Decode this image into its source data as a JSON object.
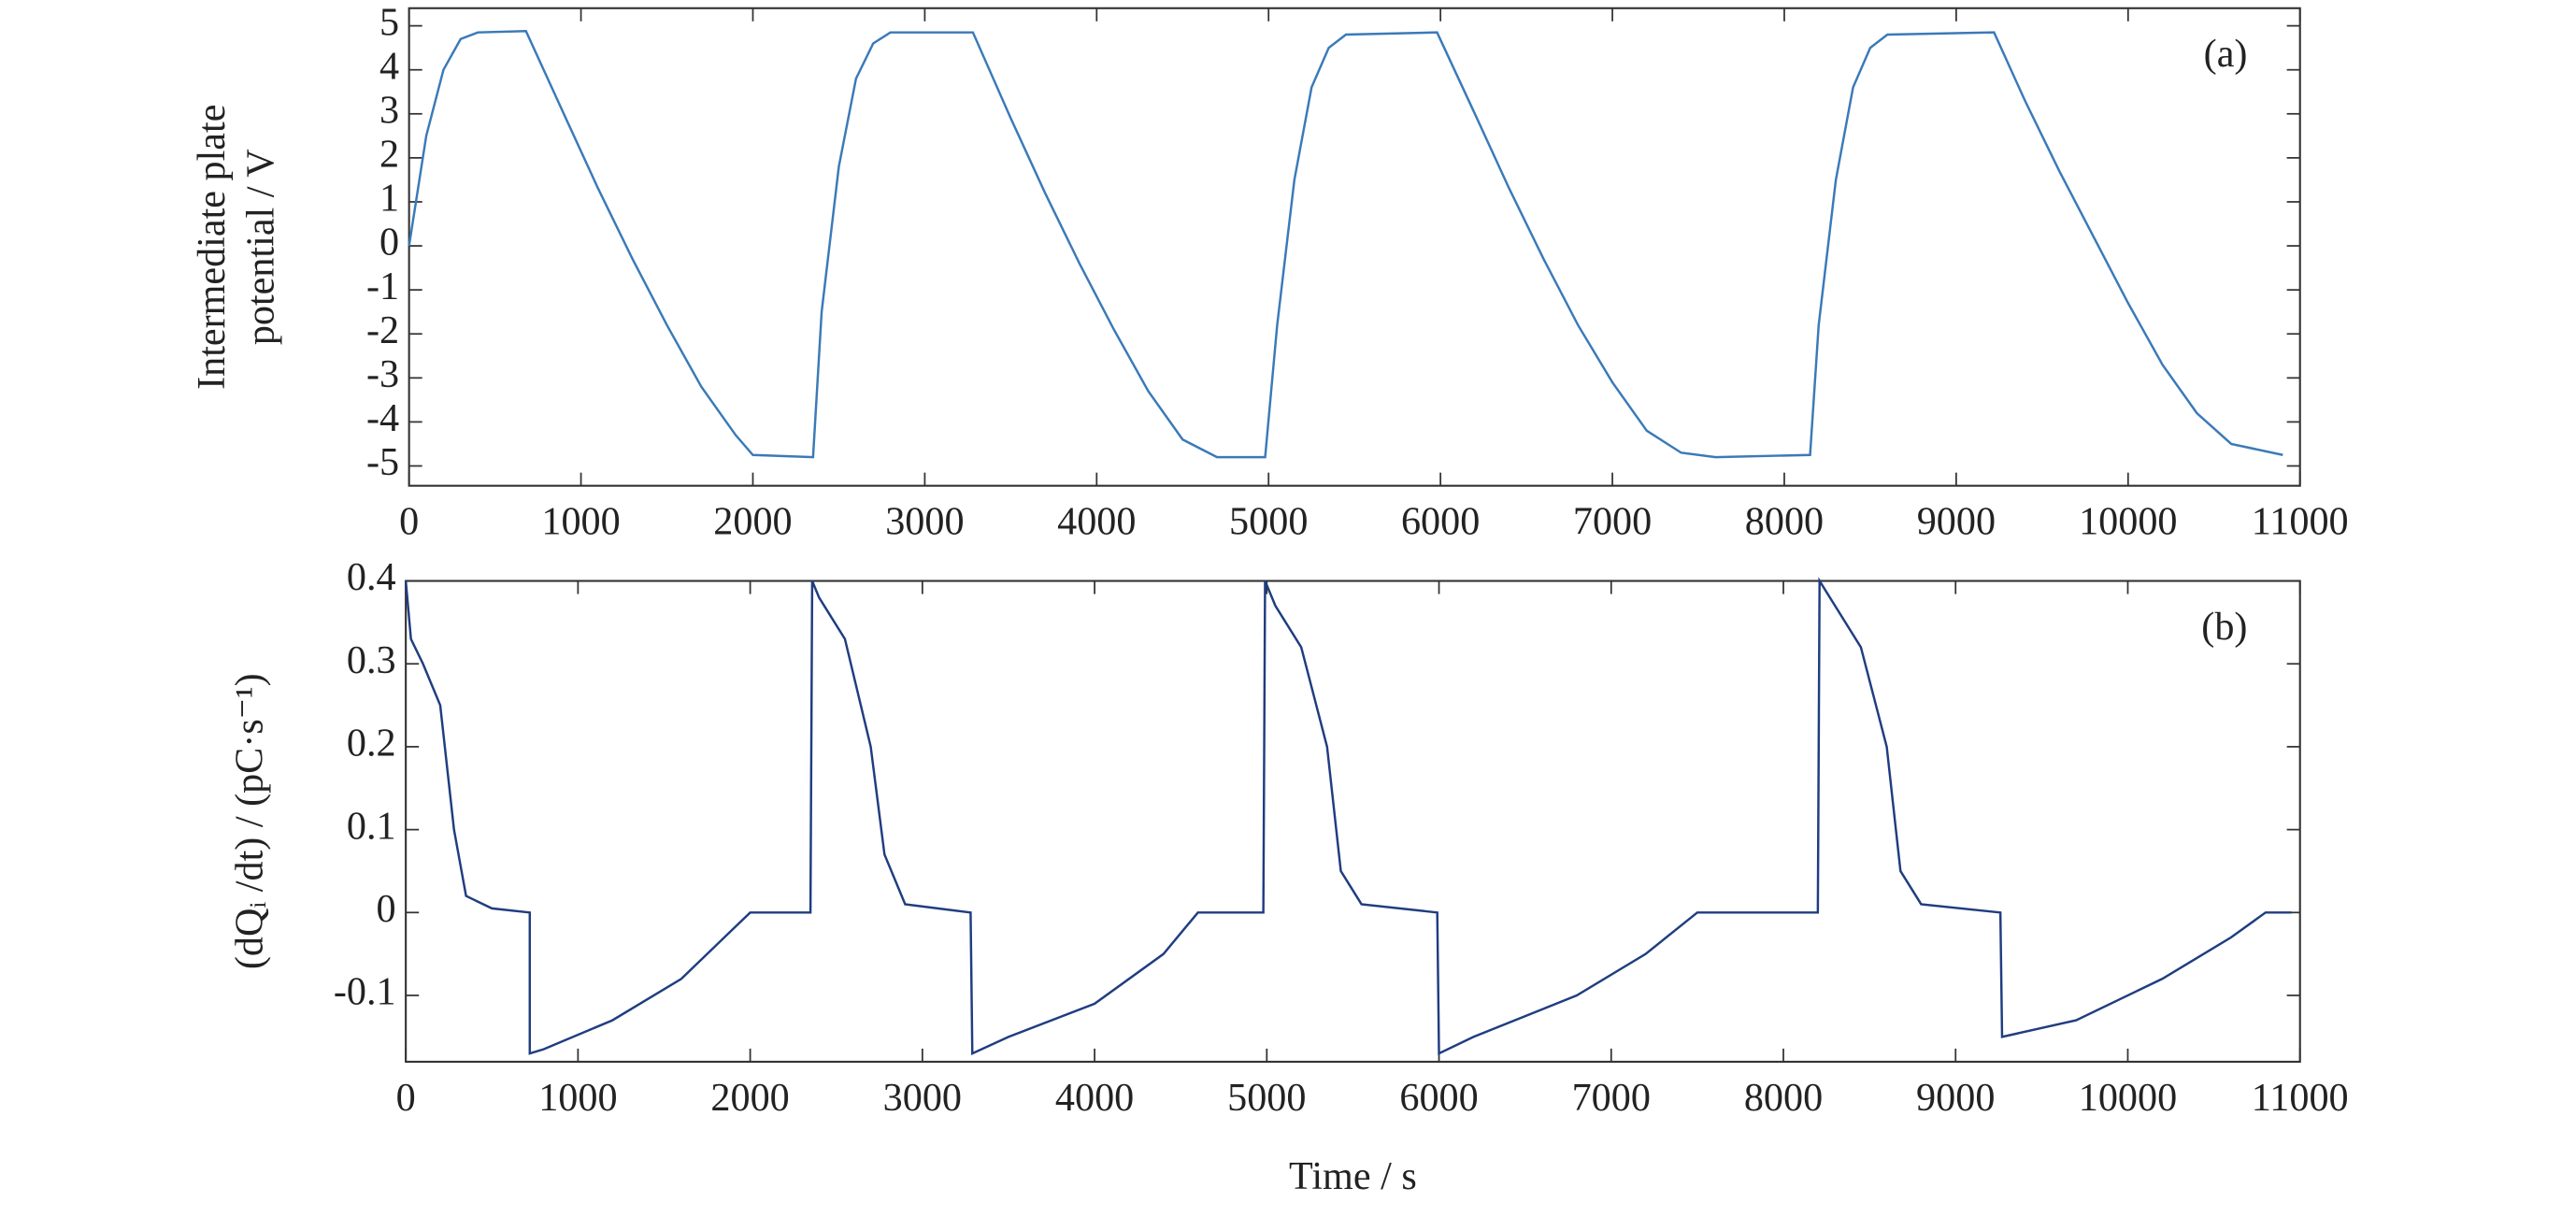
{
  "chart_data": [
    {
      "type": "line",
      "annotation": "(a)",
      "ylabel": [
        "Intermediate plate",
        "potential / V"
      ],
      "xlim": [
        0,
        11000
      ],
      "xticks": [
        0,
        1000,
        2000,
        3000,
        4000,
        5000,
        6000,
        7000,
        8000,
        9000,
        10000,
        11000
      ],
      "ylim": [
        -5.45,
        5.4
      ],
      "yticks": [
        -5,
        -4,
        -3,
        -2,
        -1,
        0,
        1,
        2,
        3,
        4,
        5
      ],
      "series": [
        {
          "color": "#3a7ab8",
          "x": [
            0,
            100,
            200,
            300,
            400,
            680,
            900,
            1100,
            1300,
            1500,
            1700,
            1900,
            2000,
            2350,
            2400,
            2500,
            2600,
            2700,
            2800,
            3280,
            3500,
            3700,
            3900,
            4100,
            4300,
            4500,
            4700,
            4980,
            5050,
            5150,
            5250,
            5350,
            5450,
            5980,
            6200,
            6400,
            6600,
            6800,
            7000,
            7200,
            7400,
            7600,
            8150,
            8200,
            8300,
            8400,
            8500,
            8600,
            9220,
            9400,
            9600,
            9800,
            10000,
            10200,
            10400,
            10600,
            10900
          ],
          "values": [
            0,
            2.5,
            4.0,
            4.7,
            4.85,
            4.88,
            3.0,
            1.3,
            -0.3,
            -1.8,
            -3.2,
            -4.3,
            -4.75,
            -4.8,
            -1.5,
            1.8,
            3.8,
            4.6,
            4.85,
            4.85,
            2.9,
            1.2,
            -0.4,
            -1.9,
            -3.3,
            -4.4,
            -4.8,
            -4.8,
            -1.8,
            1.5,
            3.6,
            4.5,
            4.8,
            4.85,
            3.0,
            1.3,
            -0.3,
            -1.8,
            -3.1,
            -4.2,
            -4.7,
            -4.8,
            -4.75,
            -1.8,
            1.5,
            3.6,
            4.5,
            4.8,
            4.85,
            3.3,
            1.7,
            0.2,
            -1.3,
            -2.7,
            -3.8,
            -4.5,
            -4.75
          ]
        }
      ]
    },
    {
      "type": "line",
      "annotation": "(b)",
      "ylabel": [
        "(dQᵢ /dt) / (pC·s⁻¹)"
      ],
      "xlabel": "Time / s",
      "xlim": [
        0,
        11000
      ],
      "xticks": [
        0,
        1000,
        2000,
        3000,
        4000,
        5000,
        6000,
        7000,
        8000,
        9000,
        10000,
        11000
      ],
      "ylim": [
        -0.18,
        0.4
      ],
      "yticks": [
        -0.1,
        0,
        0.1,
        0.2,
        0.3,
        0.4
      ],
      "series": [
        {
          "color": "#1f3d80",
          "x": [
            0,
            30,
            100,
            200,
            280,
            350,
            500,
            720,
            720,
            800,
            1200,
            1600,
            1900,
            2000,
            2350,
            2360,
            2400,
            2550,
            2700,
            2780,
            2900,
            3280,
            3290,
            3500,
            4000,
            4400,
            4600,
            4980,
            4990,
            5050,
            5200,
            5350,
            5430,
            5550,
            5990,
            6000,
            6200,
            6800,
            7200,
            7500,
            8200,
            8210,
            8300,
            8450,
            8600,
            8680,
            8800,
            9260,
            9270,
            9700,
            10200,
            10600,
            10800,
            10950
          ],
          "values": [
            0.4,
            0.33,
            0.3,
            0.25,
            0.1,
            0.02,
            0.005,
            0,
            -0.17,
            -0.165,
            -0.13,
            -0.08,
            -0.02,
            0,
            0,
            0.4,
            0.38,
            0.33,
            0.2,
            0.07,
            0.01,
            0,
            -0.17,
            -0.15,
            -0.11,
            -0.05,
            0,
            0,
            0.4,
            0.37,
            0.32,
            0.2,
            0.05,
            0.01,
            0,
            -0.17,
            -0.15,
            -0.1,
            -0.05,
            0,
            0,
            0.4,
            0.37,
            0.32,
            0.2,
            0.05,
            0.01,
            0,
            -0.15,
            -0.13,
            -0.08,
            -0.03,
            0,
            0
          ]
        }
      ]
    }
  ]
}
